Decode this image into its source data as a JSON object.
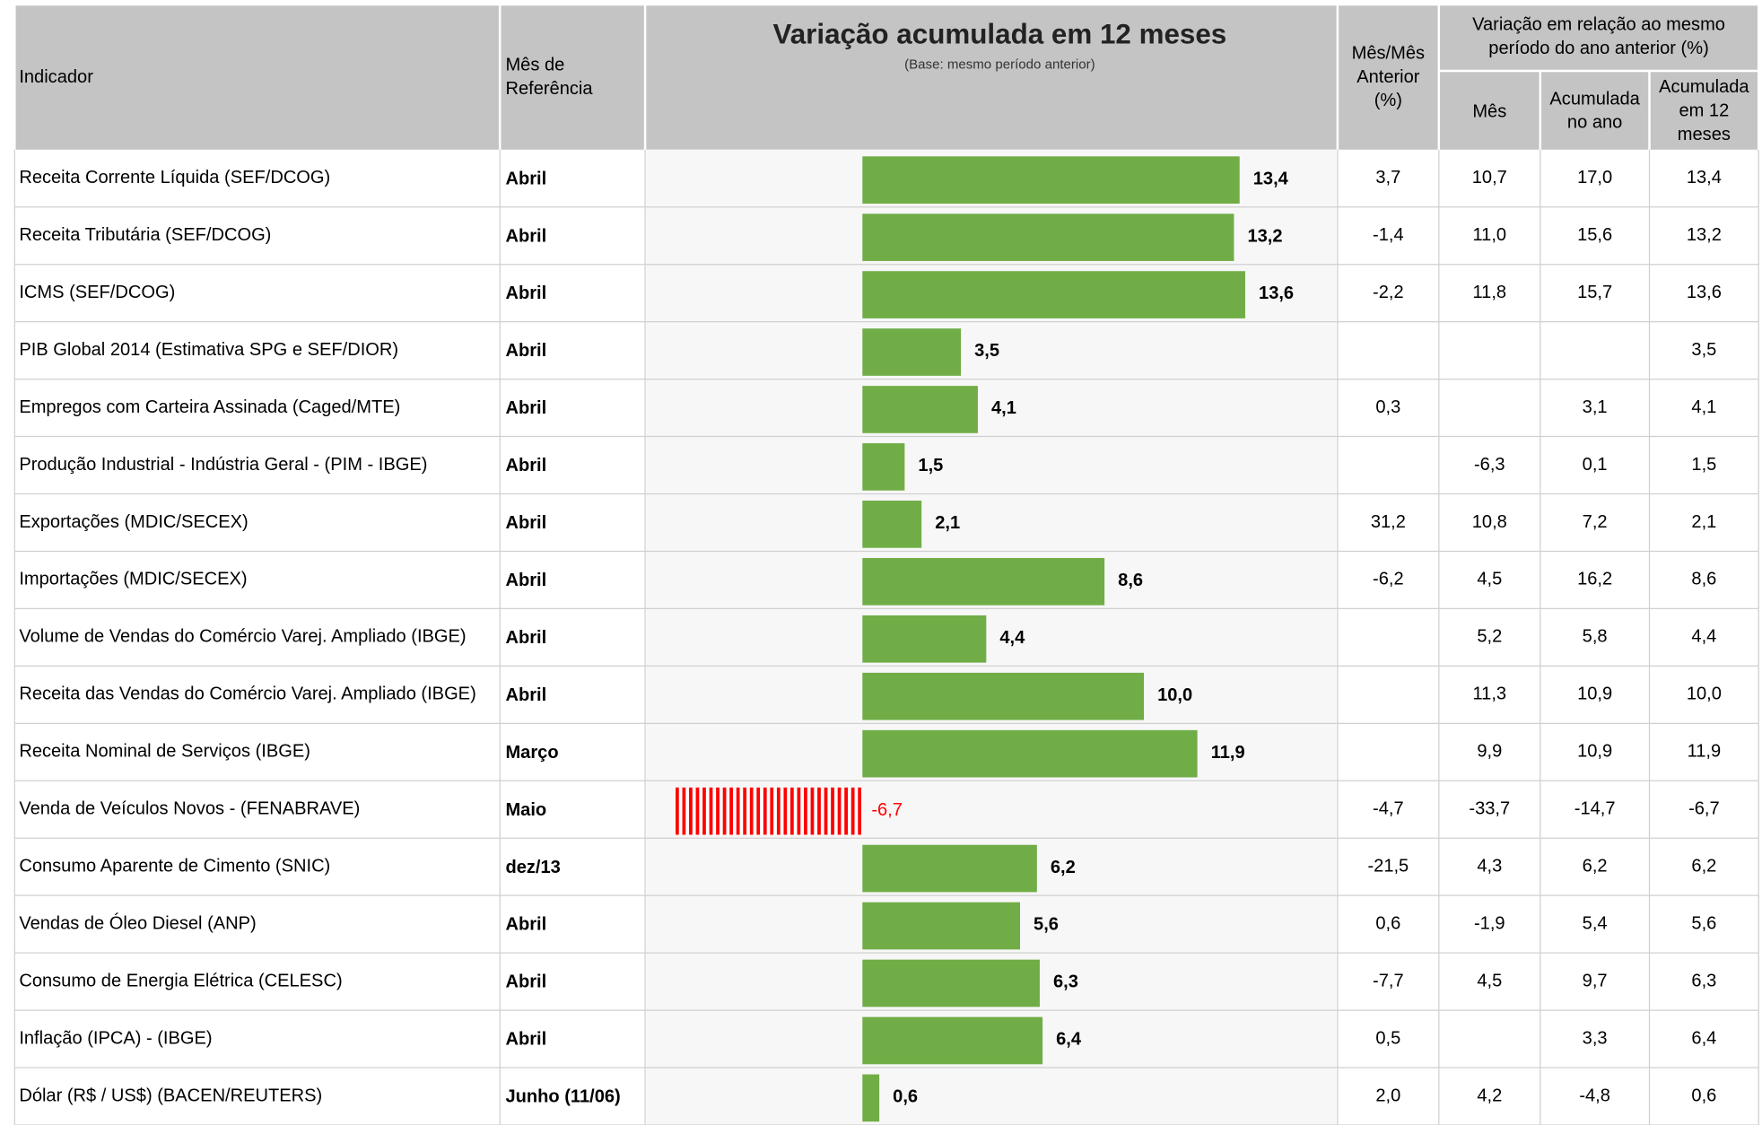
{
  "header": {
    "indicator": "Indicador",
    "month": [
      "Mês de",
      "Referência"
    ],
    "chart_title": "Variação acumulada em 12 meses",
    "chart_subtitle": "(Base: mesmo período anterior)",
    "mom": [
      "Mês/Mês",
      "Anterior",
      "(%)"
    ],
    "group": [
      "Variação em relação ao mesmo",
      "período do ano anterior (%)"
    ],
    "sub": [
      [
        "Mês"
      ],
      [
        "Acumulada",
        "no ano"
      ],
      [
        "Acumulada",
        "em 12",
        "meses"
      ]
    ]
  },
  "bar_color": "#70ad47",
  "negative_color": "#ff0000",
  "rows": [
    {
      "indicator": "Receita Corrente Líquida (SEF/DCOG)",
      "month": "Abril",
      "bar": {
        "value": 13.4,
        "label": "13,4"
      },
      "cells": [
        "3,7",
        "10,7",
        "17,0",
        "13,4"
      ]
    },
    {
      "indicator": "Receita Tributária (SEF/DCOG)",
      "month": "Abril",
      "bar": {
        "value": 13.2,
        "label": "13,2"
      },
      "cells": [
        "-1,4",
        "11,0",
        "15,6",
        "13,2"
      ]
    },
    {
      "indicator": "ICMS (SEF/DCOG)",
      "month": "Abril",
      "bar": {
        "value": 13.6,
        "label": "13,6"
      },
      "cells": [
        "-2,2",
        "11,8",
        "15,7",
        "13,6"
      ]
    },
    {
      "indicator": "PIB Global 2014 (Estimativa SPG e SEF/DIOR)",
      "month": "Abril",
      "bar": {
        "value": 3.5,
        "label": "3,5"
      },
      "cells": [
        null,
        null,
        null,
        "3,5"
      ]
    },
    {
      "indicator": "Empregos com Carteira Assinada (Caged/MTE)",
      "month": "Abril",
      "bar": {
        "value": 4.1,
        "label": "4,1"
      },
      "cells": [
        "0,3",
        null,
        "3,1",
        "4,1"
      ]
    },
    {
      "indicator": "Produção Industrial - Indústria Geral - (PIM - IBGE)",
      "month": "Abril",
      "bar": {
        "value": 1.5,
        "label": "1,5"
      },
      "cells": [
        null,
        "-6,3",
        "0,1",
        "1,5"
      ]
    },
    {
      "indicator": "Exportações (MDIC/SECEX)",
      "month": "Abril",
      "bar": {
        "value": 2.1,
        "label": "2,1"
      },
      "cells": [
        "31,2",
        "10,8",
        "7,2",
        "2,1"
      ]
    },
    {
      "indicator": "Importações (MDIC/SECEX)",
      "month": "Abril",
      "bar": {
        "value": 8.6,
        "label": "8,6"
      },
      "cells": [
        "-6,2",
        "4,5",
        "16,2",
        "8,6"
      ]
    },
    {
      "indicator": "Volume de Vendas do Comércio Varej. Ampliado (IBGE)",
      "month": "Abril",
      "bar": {
        "value": 4.4,
        "label": "4,4"
      },
      "cells": [
        null,
        "5,2",
        "5,8",
        "4,4"
      ]
    },
    {
      "indicator": "Receita das Vendas do Comércio Varej. Ampliado (IBGE)",
      "month": "Abril",
      "bar": {
        "value": 10.0,
        "label": "10,0"
      },
      "cells": [
        null,
        "11,3",
        "10,9",
        "10,0"
      ]
    },
    {
      "indicator": "Receita Nominal de  Serviços (IBGE)",
      "month": "Março",
      "bar": {
        "value": 11.9,
        "label": "11,9"
      },
      "cells": [
        null,
        "9,9",
        "10,9",
        "11,9"
      ]
    },
    {
      "indicator": "Venda de Veículos Novos - (FENABRAVE)",
      "month": "Maio",
      "bar": {
        "value": -6.7,
        "label": "-6,7"
      },
      "cells": [
        "-4,7",
        "-33,7",
        "-14,7",
        "-6,7"
      ]
    },
    {
      "indicator": "Consumo Aparente de Cimento (SNIC)",
      "month": "dez/13",
      "bar": {
        "value": 6.2,
        "label": "6,2"
      },
      "cells": [
        "-21,5",
        "4,3",
        "6,2",
        "6,2"
      ]
    },
    {
      "indicator": "Vendas de Óleo Diesel (ANP)",
      "month": "Abril",
      "bar": {
        "value": 5.6,
        "label": "5,6"
      },
      "cells": [
        "0,6",
        "-1,9",
        "5,4",
        "5,6"
      ]
    },
    {
      "indicator": "Consumo  de Energia Elétrica (CELESC)",
      "month": "Abril",
      "bar": {
        "value": 6.3,
        "label": "6,3"
      },
      "cells": [
        "-7,7",
        "4,5",
        "9,7",
        "6,3"
      ]
    },
    {
      "indicator": "Inflação (IPCA) - (IBGE)",
      "month": "Abril",
      "bar": {
        "value": 6.4,
        "label": "6,4"
      },
      "cells": [
        "0,5",
        null,
        "3,3",
        "6,4"
      ]
    },
    {
      "indicator": "Dólar (R$ / US$)  (BACEN/REUTERS)",
      "month": "Junho (11/06)",
      "bar": {
        "value": 0.6,
        "label": "0,6"
      },
      "cells": [
        "2,0",
        "4,2",
        "-4,8",
        "0,6"
      ]
    }
  ]
}
